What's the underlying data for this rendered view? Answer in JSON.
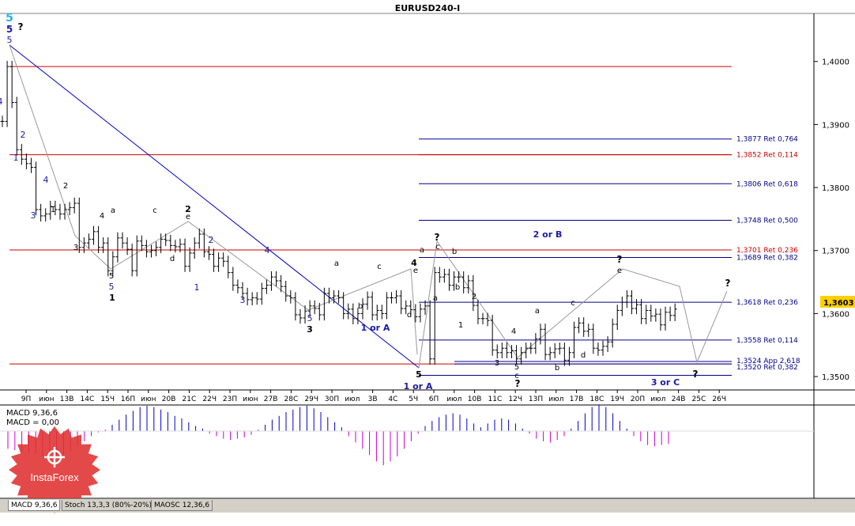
{
  "window": {
    "title": "EURUSD240-I"
  },
  "price_axis": {
    "ticks": [
      "1,4000",
      "1,3900",
      "1,3800",
      "1,3700",
      "1,3600",
      "1,3500"
    ],
    "tick_values": [
      1.4,
      1.39,
      1.38,
      1.37,
      1.36,
      1.35
    ],
    "current_price": "1,3603",
    "current_value": 1.3603
  },
  "time_axis": {
    "labels": [
      "9П",
      "июн",
      "13В",
      "14С",
      "15Ч",
      "16П",
      "июн",
      "20В",
      "21С",
      "22Ч",
      "23П",
      "июн",
      "27В",
      "28С",
      "29Ч",
      "30П",
      "июл",
      "3В",
      "4С",
      "5Ч",
      "6П",
      "июл",
      "10В",
      "11С",
      "12Ч",
      "13П",
      "июл",
      "17В",
      "18С",
      "19Ч",
      "20П",
      "июл",
      "24В",
      "25С",
      "26Ч"
    ]
  },
  "levels": [
    {
      "label": "1,3877 Ret 0,764",
      "value": 1.3877,
      "color": "#00008b"
    },
    {
      "label": "1,3852 Ret 0,114",
      "value": 1.3852,
      "color": "#cc0000"
    },
    {
      "label": "1,3806 Ret 0,618",
      "value": 1.3806,
      "color": "#00008b"
    },
    {
      "label": "1,3748 Ret 0,500",
      "value": 1.3748,
      "color": "#00008b"
    },
    {
      "label": "1,3701 Ret 0,236",
      "value": 1.3701,
      "color": "#cc0000"
    },
    {
      "label": "1,3689 Ret 0,382",
      "value": 1.3689,
      "color": "#00008b"
    },
    {
      "label": "1,3618 Ret 0,236",
      "value": 1.3618,
      "color": "#00008b"
    },
    {
      "label": "1,3558 Ret 0,114",
      "value": 1.3558,
      "color": "#00008b"
    },
    {
      "label": "1,3524 App 2,618",
      "value": 1.3524,
      "color": "#00008b"
    },
    {
      "label": "1,3520 Ret 0,382",
      "value": 1.352,
      "color": "#00008b"
    }
  ],
  "red_lines": [
    1.3992,
    1.3852,
    1.3701,
    1.352
  ],
  "chart_data": {
    "type": "bar",
    "title": "EURUSD240-I",
    "ylim": [
      1.348,
      1.4075
    ],
    "y_ticks": [
      1.4,
      1.39,
      1.38,
      1.37,
      1.36,
      1.35
    ],
    "closes": [
      1.3905,
      1.3992,
      1.3935,
      1.386,
      1.3845,
      1.3838,
      1.3832,
      1.3765,
      1.3755,
      1.3758,
      1.377,
      1.3765,
      1.3758,
      1.3765,
      1.3768,
      1.3775,
      1.3705,
      1.3712,
      1.3718,
      1.373,
      1.3705,
      1.3712,
      1.3668,
      1.369,
      1.372,
      1.3712,
      1.3702,
      1.3668,
      1.3715,
      1.3708,
      1.3698,
      1.37,
      1.3705,
      1.3718,
      1.3716,
      1.3708,
      1.3706,
      1.371,
      1.3675,
      1.3696,
      1.3712,
      1.3726,
      1.3698,
      1.3694,
      1.3675,
      1.3688,
      1.3683,
      1.3665,
      1.3645,
      1.3641,
      1.3632,
      1.3622,
      1.3625,
      1.3623,
      1.364,
      1.3645,
      1.3658,
      1.3652,
      1.3643,
      1.3628,
      1.3625,
      1.3598,
      1.3593,
      1.3604,
      1.3612,
      1.3608,
      1.3598,
      1.3632,
      1.3625,
      1.3628,
      1.3625,
      1.36,
      1.3607,
      1.3592,
      1.36,
      1.3615,
      1.3626,
      1.3598,
      1.3605,
      1.36,
      1.3625,
      1.3625,
      1.3628,
      1.3608,
      1.3612,
      1.3606,
      1.3595,
      1.3607,
      1.3612,
      1.3528,
      1.3665,
      1.3658,
      1.3662,
      1.3645,
      1.3658,
      1.3658,
      1.3641,
      1.3652,
      1.3613,
      1.3592,
      1.3592,
      1.3589,
      1.3542,
      1.3538,
      1.3545,
      1.3538,
      1.3541,
      1.3528,
      1.3538,
      1.3545,
      1.3545,
      1.356,
      1.3575,
      1.3535,
      1.3538,
      1.3544,
      1.3545,
      1.3526,
      1.3538,
      1.3578,
      1.3585,
      1.3572,
      1.3575,
      1.3545,
      1.3542,
      1.3548,
      1.3555,
      1.3583,
      1.3605,
      1.3618,
      1.3628,
      1.3608,
      1.3614,
      1.3592,
      1.3605,
      1.3596,
      1.3599,
      1.3582,
      1.3602,
      1.3597,
      1.3607
    ]
  },
  "macd_panel": {
    "label": "MACD 9,36,6",
    "value_label": "MACD = 0,00",
    "histogram": [
      -0.7,
      -0.75,
      -0.8,
      -0.85,
      -0.9,
      -1.0,
      -1.05,
      -1.0,
      -0.95,
      -0.8,
      -0.6,
      -0.4,
      -0.2,
      -0.05,
      0.05,
      0.25,
      0.45,
      0.65,
      0.8,
      0.95,
      1.0,
      0.95,
      0.85,
      0.75,
      0.6,
      0.5,
      0.35,
      0.2,
      0.1,
      -0.1,
      -0.2,
      -0.3,
      -0.35,
      -0.3,
      -0.25,
      -0.15,
      0.05,
      0.25,
      0.45,
      0.6,
      0.75,
      0.85,
      0.95,
      1.0,
      0.9,
      0.75,
      0.55,
      0.35,
      0.15,
      -0.2,
      -0.45,
      -0.7,
      -0.95,
      -1.2,
      -1.35,
      -1.2,
      -1.0,
      -0.7,
      -0.4,
      -0.1,
      0.2,
      0.4,
      0.55,
      0.65,
      0.7,
      0.65,
      0.5,
      0.3,
      0.15,
      0.3,
      0.45,
      0.5,
      0.45,
      0.3,
      0.1,
      -0.1,
      -0.3,
      -0.4,
      -0.45,
      -0.35,
      -0.2,
      0.1,
      0.4,
      0.7,
      0.95,
      1.05,
      0.95,
      0.7,
      0.4,
      0.1,
      -0.2,
      -0.4,
      -0.55,
      -0.6,
      -0.55,
      -0.5
    ]
  },
  "tabs": [
    {
      "label": "MACD 9,36,6"
    },
    {
      "label": "Stoch 13,3,3 (80%-20%)"
    },
    {
      "label": "MAOSC 12,36,6"
    }
  ],
  "logo": {
    "text": "InstaForex",
    "color": "#e03030"
  },
  "wave_labels": [
    {
      "text": "5",
      "color": "#2ab0e0"
    },
    {
      "text": "5",
      "color": "#1a1aaa"
    },
    {
      "text": "5",
      "color": "#1a1aaa"
    },
    {
      "text": "?",
      "color": "#000000"
    },
    {
      "text": "4",
      "color": "#1a1aaa"
    },
    {
      "text": "2",
      "color": "#1a1aaa"
    },
    {
      "text": "1",
      "color": "#1a1aaa"
    },
    {
      "text": "4",
      "color": "#1a1aaa"
    },
    {
      "text": "3",
      "color": "#1a1aaa"
    },
    {
      "text": "2",
      "color": "#000000"
    },
    {
      "text": "1",
      "color": "#000000"
    },
    {
      "text": "3",
      "color": "#000000"
    },
    {
      "text": "4",
      "color": "#000000"
    },
    {
      "text": "5",
      "color": "#000000"
    },
    {
      "text": "5",
      "color": "#1a1aaa"
    },
    {
      "text": "1",
      "color": "#000000"
    },
    {
      "text": "a",
      "color": "#000000"
    },
    {
      "text": "c",
      "color": "#000000"
    },
    {
      "text": "2",
      "color": "#000000"
    },
    {
      "text": "e",
      "color": "#000000"
    },
    {
      "text": "d",
      "color": "#000000"
    },
    {
      "text": "2",
      "color": "#1a1aaa"
    },
    {
      "text": "1",
      "color": "#1a1aaa"
    },
    {
      "text": "3",
      "color": "#1a1aaa"
    },
    {
      "text": "4",
      "color": "#1a1aaa"
    },
    {
      "text": "5",
      "color": "#1a1aaa"
    },
    {
      "text": "3",
      "color": "#000000"
    },
    {
      "text": "a",
      "color": "#000000"
    },
    {
      "text": "b",
      "color": "#000000"
    },
    {
      "text": "c",
      "color": "#000000"
    },
    {
      "text": "1 or A",
      "color": "#1a1aaa"
    },
    {
      "text": "4",
      "color": "#000000"
    },
    {
      "text": "e",
      "color": "#000000"
    },
    {
      "text": "d",
      "color": "#000000"
    },
    {
      "text": "5",
      "color": "#000000"
    },
    {
      "text": "1 or A",
      "color": "#1a1aaa"
    },
    {
      "text": "a",
      "color": "#000000"
    },
    {
      "text": "?",
      "color": "#000000"
    },
    {
      "text": "c",
      "color": "#000000"
    },
    {
      "text": "b",
      "color": "#000000"
    },
    {
      "text": "a",
      "color": "#000000"
    },
    {
      "text": "b",
      "color": "#000000"
    },
    {
      "text": "2",
      "color": "#000000"
    },
    {
      "text": "1",
      "color": "#000000"
    },
    {
      "text": "4",
      "color": "#000000"
    },
    {
      "text": "3",
      "color": "#000000"
    },
    {
      "text": "5",
      "color": "#000000"
    },
    {
      "text": "c",
      "color": "#000000"
    },
    {
      "text": "?",
      "color": "#000000"
    },
    {
      "text": "a",
      "color": "#000000"
    },
    {
      "text": "b",
      "color": "#000000"
    },
    {
      "text": "c",
      "color": "#000000"
    },
    {
      "text": "d",
      "color": "#000000"
    },
    {
      "text": "?",
      "color": "#000000"
    },
    {
      "text": "e",
      "color": "#000000"
    },
    {
      "text": "2 or B",
      "color": "#1a1aaa"
    },
    {
      "text": "?",
      "color": "#000000"
    },
    {
      "text": "?",
      "color": "#000000"
    },
    {
      "text": "3 or C",
      "color": "#1a1aaa"
    }
  ]
}
